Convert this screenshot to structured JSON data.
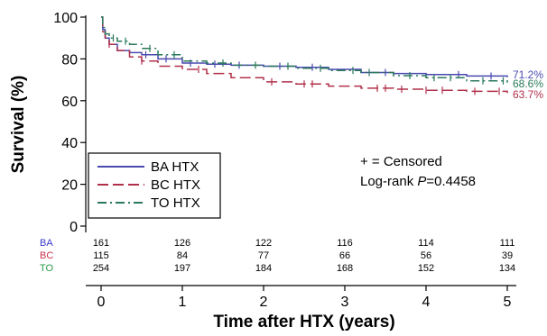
{
  "chart_data": {
    "type": "line",
    "subtype": "kaplan-meier",
    "xlabel": "Time after HTX (years)",
    "ylabel": "Survival (%)",
    "xlim": [
      0,
      5
    ],
    "ylim": [
      0,
      100
    ],
    "xticks": [
      "0",
      "1",
      "2",
      "3",
      "4",
      "5"
    ],
    "yticks": [
      "0",
      "20",
      "40",
      "60",
      "80",
      "100"
    ],
    "grid": false,
    "legend_position": "bottom-left",
    "series": [
      {
        "name": "BA HTX",
        "short": "BA",
        "color": "#4a4ab0",
        "dash": "solid",
        "end_label": "71.2%",
        "points": [
          [
            0,
            100
          ],
          [
            0.02,
            94
          ],
          [
            0.05,
            90
          ],
          [
            0.1,
            87
          ],
          [
            0.2,
            84
          ],
          [
            0.35,
            83
          ],
          [
            0.5,
            82
          ],
          [
            0.7,
            80
          ],
          [
            1.0,
            78
          ],
          [
            1.3,
            77.5
          ],
          [
            1.6,
            77
          ],
          [
            2.0,
            76.5
          ],
          [
            2.4,
            76
          ],
          [
            2.8,
            75
          ],
          [
            3.2,
            73.5
          ],
          [
            3.6,
            73
          ],
          [
            4.0,
            72.5
          ],
          [
            4.5,
            71.8
          ],
          [
            5.0,
            71.2
          ]
        ],
        "censored": [
          0.55,
          0.8,
          1.1,
          1.4,
          1.7,
          2.2,
          2.6,
          3.5,
          4.4,
          4.8
        ]
      },
      {
        "name": "BC HTX",
        "short": "BC",
        "color": "#b0304a",
        "dash": "long-dash",
        "end_label": "63.7%",
        "points": [
          [
            0,
            100
          ],
          [
            0.02,
            93
          ],
          [
            0.05,
            90
          ],
          [
            0.1,
            87
          ],
          [
            0.2,
            84
          ],
          [
            0.35,
            81
          ],
          [
            0.5,
            79
          ],
          [
            0.7,
            76.5
          ],
          [
            1.0,
            75
          ],
          [
            1.3,
            73
          ],
          [
            1.6,
            71
          ],
          [
            2.0,
            69
          ],
          [
            2.4,
            68
          ],
          [
            2.8,
            67
          ],
          [
            3.2,
            66
          ],
          [
            3.6,
            65.5
          ],
          [
            4.0,
            65
          ],
          [
            4.5,
            64.5
          ],
          [
            5.0,
            63.7
          ]
        ],
        "censored": [
          0.1,
          0.5,
          1.2,
          2.1,
          2.5,
          2.6,
          3.4,
          3.5,
          3.7,
          4.0,
          4.2,
          4.6,
          4.9
        ]
      },
      {
        "name": "TO HTX",
        "short": "TO",
        "color": "#2a7a5a",
        "dash": "dash-dot",
        "end_label": "68.6%",
        "points": [
          [
            0,
            100
          ],
          [
            0.02,
            95
          ],
          [
            0.05,
            92
          ],
          [
            0.1,
            90
          ],
          [
            0.2,
            88.5
          ],
          [
            0.35,
            87
          ],
          [
            0.5,
            85
          ],
          [
            0.7,
            82
          ],
          [
            1.0,
            79
          ],
          [
            1.3,
            78
          ],
          [
            1.6,
            77
          ],
          [
            2.0,
            76.5
          ],
          [
            2.4,
            75.5
          ],
          [
            2.8,
            74.5
          ],
          [
            3.2,
            73.5
          ],
          [
            3.6,
            72
          ],
          [
            4.0,
            71
          ],
          [
            4.5,
            69.5
          ],
          [
            5.0,
            68.6
          ]
        ],
        "censored": [
          0.15,
          0.3,
          0.6,
          0.9,
          1.5,
          1.9,
          2.3,
          2.7,
          3.1,
          3.3,
          3.8,
          4.1,
          4.3,
          4.7,
          4.95
        ]
      }
    ],
    "annotations": {
      "censor_note": "+ = Censored",
      "logrank_prefix": "Log-rank ",
      "logrank_p_symbol": "P",
      "logrank_value": "=0.4458"
    },
    "risk_table": {
      "times": [
        0,
        1,
        2,
        3,
        4,
        5
      ],
      "rows": [
        {
          "label": "BA",
          "color": "#3a3ad0",
          "counts": [
            "161",
            "126",
            "122",
            "116",
            "114",
            "111"
          ]
        },
        {
          "label": "BC",
          "color": "#c8304a",
          "counts": [
            "115",
            "84",
            "77",
            "66",
            "56",
            "39"
          ]
        },
        {
          "label": "TO",
          "color": "#2a9a4a",
          "counts": [
            "254",
            "197",
            "184",
            "168",
            "152",
            "134"
          ]
        }
      ]
    }
  }
}
